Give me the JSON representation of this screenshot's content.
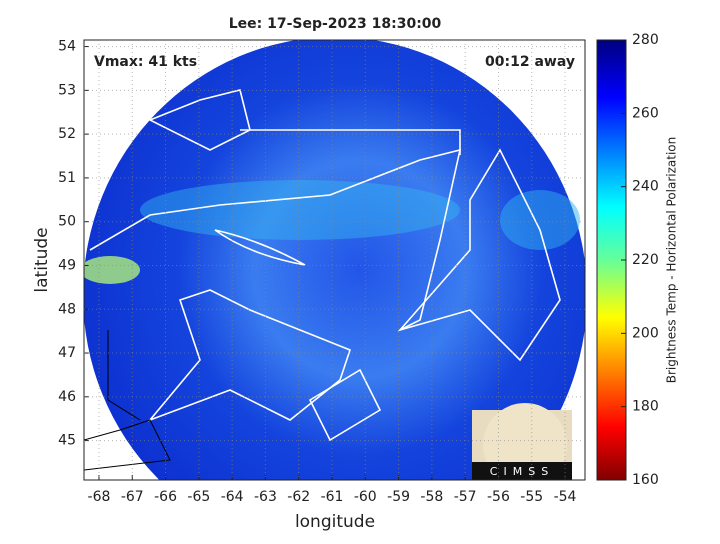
{
  "chart_data": {
    "type": "map",
    "title": "Lee: 17-Sep-2023 18:30:00",
    "annotations": [
      "Vmax: 41 kts",
      "00:12 away"
    ],
    "x_label": "longitude",
    "y_label": "latitude",
    "xlim": [
      -68.45,
      -53.4
    ],
    "xticks": [
      -68,
      -67,
      -66,
      -65,
      -64,
      -63,
      -62,
      -61,
      -60,
      -59,
      -58,
      -57,
      -56,
      -55,
      -54
    ],
    "ylim": [
      44.1,
      54.15
    ],
    "yticks": [
      45,
      46,
      47,
      48,
      49,
      50,
      51,
      52,
      53,
      54
    ],
    "colorbar": {
      "label": "Brightness Temp - Horizontal Polarization",
      "lim": [
        160,
        280
      ],
      "ticks": [
        160,
        180,
        200,
        220,
        240,
        260,
        280
      ]
    },
    "logo": "CIMSS"
  }
}
